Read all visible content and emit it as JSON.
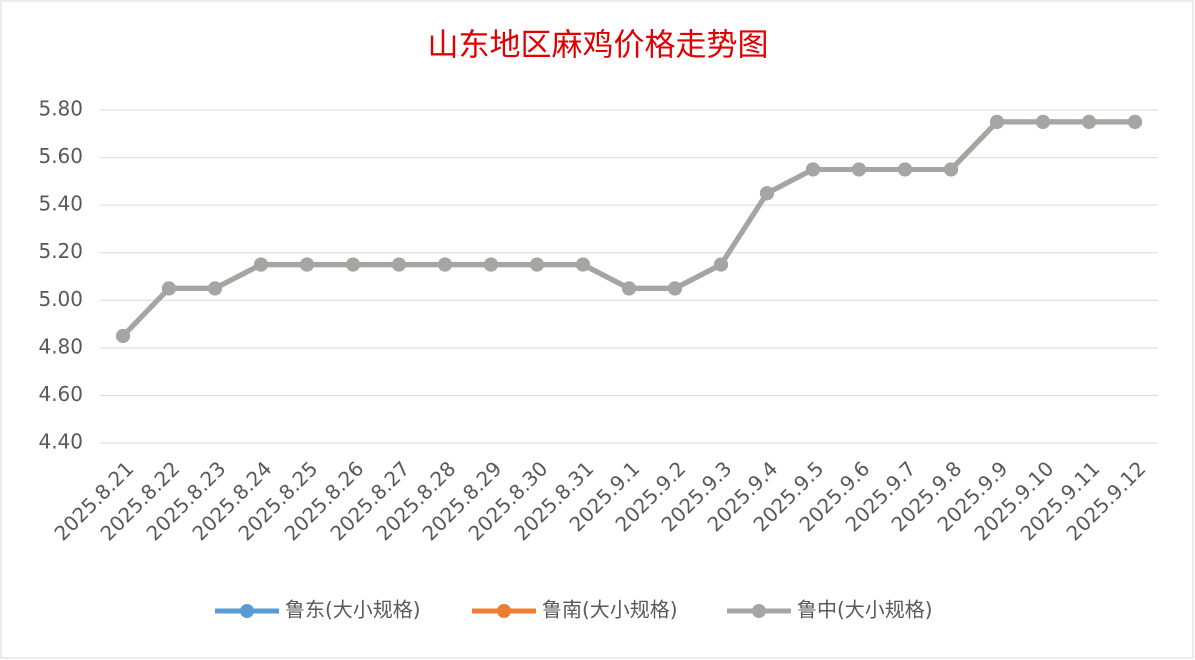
{
  "chart_data": {
    "type": "line",
    "title": "山东地区麻鸡价格走势图",
    "categories": [
      "2025.8.21",
      "2025.8.22",
      "2025.8.23",
      "2025.8.24",
      "2025.8.25",
      "2025.8.26",
      "2025.8.27",
      "2025.8.28",
      "2025.8.29",
      "2025.8.30",
      "2025.8.31",
      "2025.9.1",
      "2025.9.2",
      "2025.9.3",
      "2025.9.4",
      "2025.9.5",
      "2025.9.6",
      "2025.9.7",
      "2025.9.8",
      "2025.9.9",
      "2025.9.10",
      "2025.9.11",
      "2025.9.12"
    ],
    "series": [
      {
        "name": "鲁东(大小规格)",
        "color": "#5b9bd5",
        "values": [
          4.85,
          5.05,
          5.05,
          5.15,
          5.15,
          5.15,
          5.15,
          5.15,
          5.15,
          5.15,
          5.15,
          5.05,
          5.05,
          5.15,
          5.45,
          5.55,
          5.55,
          5.55,
          5.55,
          5.75,
          5.75,
          5.75,
          5.75
        ]
      },
      {
        "name": "鲁南(大小规格)",
        "color": "#ed7d31",
        "values": [
          4.85,
          5.05,
          5.05,
          5.15,
          5.15,
          5.15,
          5.15,
          5.15,
          5.15,
          5.15,
          5.15,
          5.05,
          5.05,
          5.15,
          5.45,
          5.55,
          5.55,
          5.55,
          5.55,
          5.75,
          5.75,
          5.75,
          5.75
        ]
      },
      {
        "name": "鲁中(大小规格)",
        "color": "#a5a5a5",
        "values": [
          4.85,
          5.05,
          5.05,
          5.15,
          5.15,
          5.15,
          5.15,
          5.15,
          5.15,
          5.15,
          5.15,
          5.05,
          5.05,
          5.15,
          5.45,
          5.55,
          5.55,
          5.55,
          5.55,
          5.75,
          5.75,
          5.75,
          5.75
        ]
      }
    ],
    "ylim": [
      4.4,
      5.8
    ],
    "yticks": [
      {
        "value": 4.4,
        "label": "4.40"
      },
      {
        "value": 4.6,
        "label": "4.60"
      },
      {
        "value": 4.8,
        "label": "4.80"
      },
      {
        "value": 5.0,
        "label": "5.00"
      },
      {
        "value": 5.2,
        "label": "5.20"
      },
      {
        "value": 5.4,
        "label": "5.40"
      },
      {
        "value": 5.6,
        "label": "5.60"
      },
      {
        "value": 5.8,
        "label": "5.80"
      }
    ],
    "grid": true,
    "legend": "bottom"
  }
}
